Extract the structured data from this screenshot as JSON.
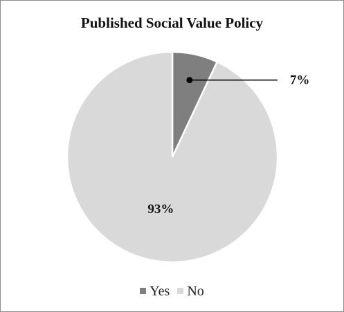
{
  "chart_data": {
    "type": "pie",
    "title": "Published Social Value Policy",
    "categories": [
      "Yes",
      "No"
    ],
    "values": [
      7,
      93
    ],
    "labels": [
      "7%",
      "93%"
    ],
    "colors": [
      "#7f7f7f",
      "#d9d9d9"
    ],
    "legend_position": "bottom",
    "start_angle": "12 o'clock",
    "direction": "clockwise"
  }
}
